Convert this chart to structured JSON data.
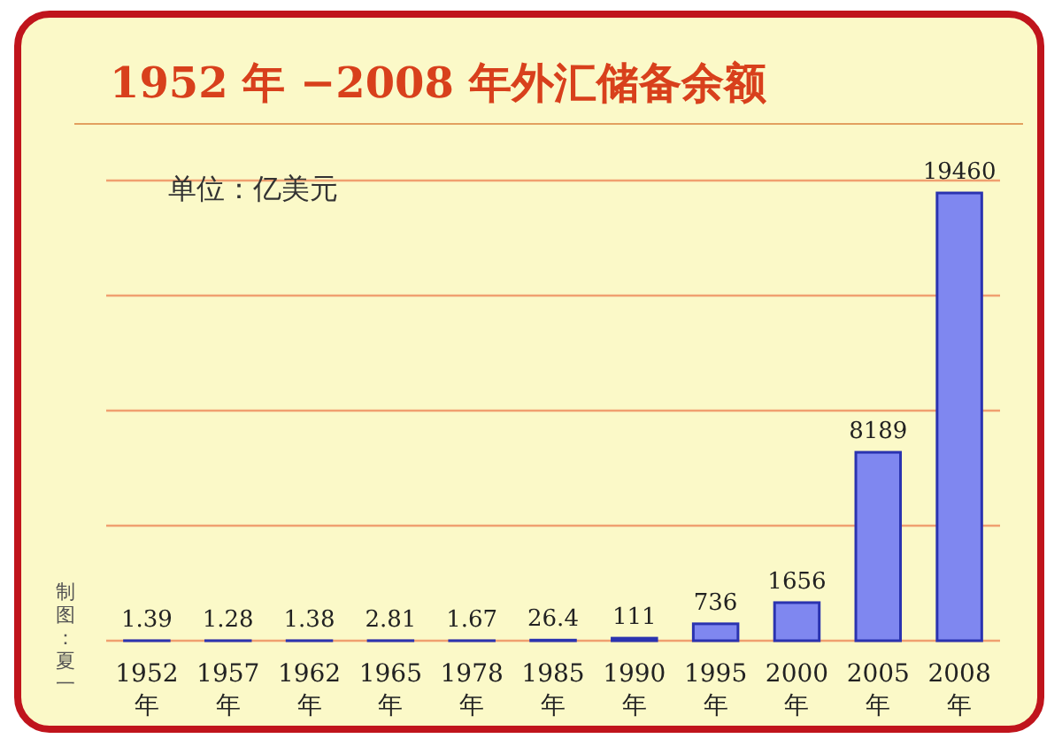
{
  "chart_data": {
    "type": "bar",
    "title": "1952 年 −2008 年外汇储备余额",
    "categories": [
      "1952年",
      "1957年",
      "1962年",
      "1965年",
      "1978年",
      "1985年",
      "1990年",
      "1995年",
      "2000年",
      "2005年",
      "2008年"
    ],
    "values": [
      1.39,
      1.28,
      1.38,
      2.81,
      1.67,
      26.4,
      111,
      736,
      1656,
      8189,
      19460
    ],
    "color": "#7f87f0",
    "data_labels": true,
    "ylim": [
      0,
      20000
    ],
    "yticks": [
      {
        "value": 0,
        "label": null
      },
      {
        "value": 5000,
        "label": null
      },
      {
        "value": 10000,
        "label": null
      },
      {
        "value": 15000,
        "label": null
      },
      {
        "value": 20000,
        "label": null
      }
    ],
    "grid": "y",
    "tick_labels": "x",
    "annotations": [
      "单位：亿美元",
      "制图：夏一"
    ]
  }
}
